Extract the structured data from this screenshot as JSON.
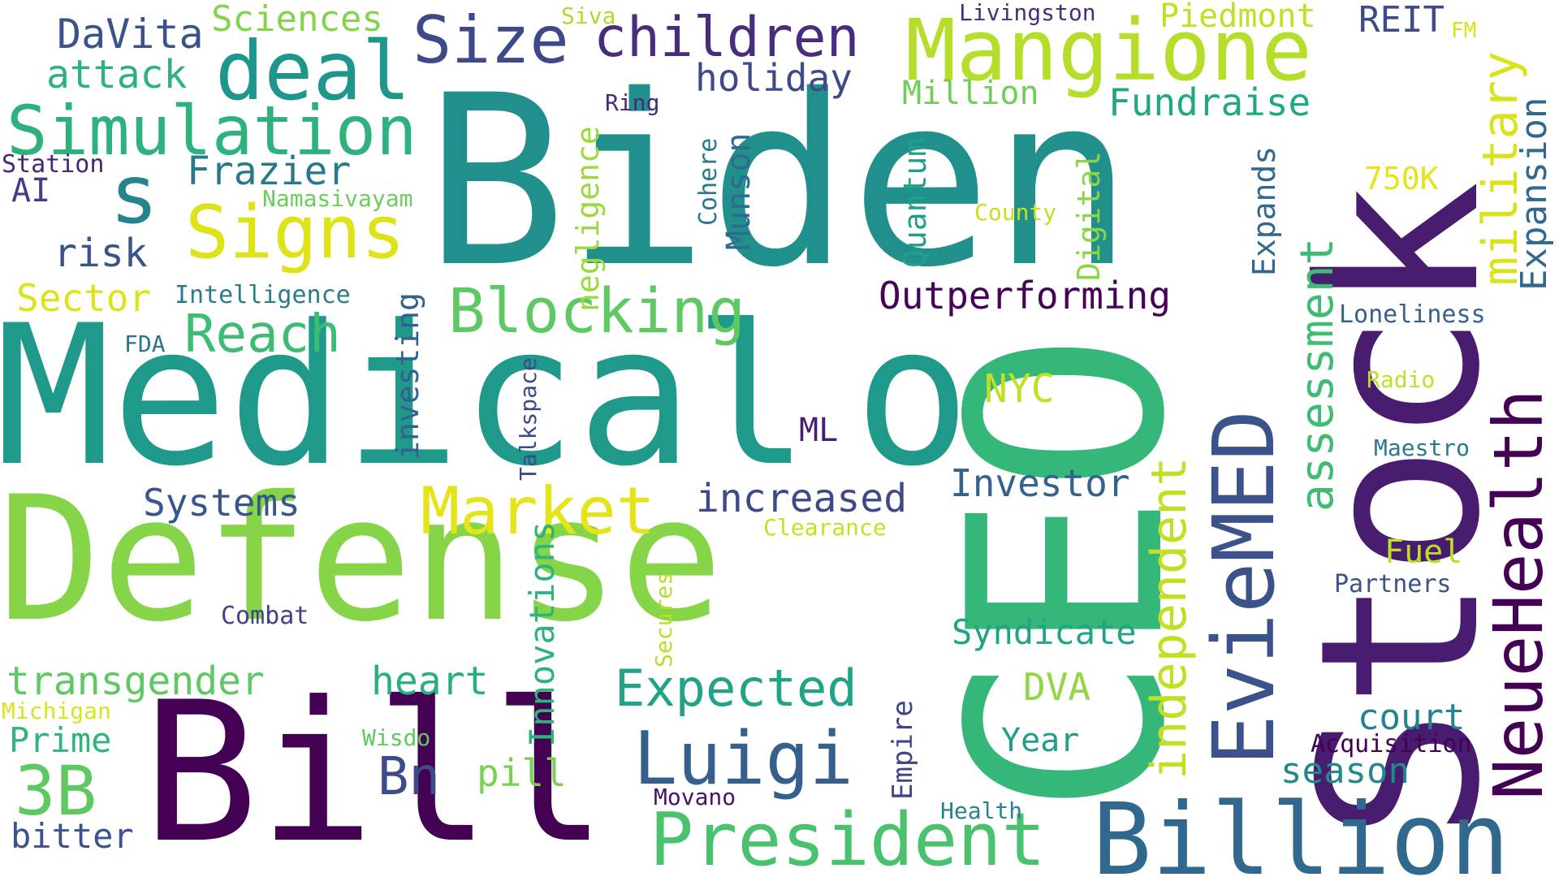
{
  "word_cloud": {
    "palette": "viridis",
    "words": [
      {
        "text": "Biden",
        "color": "#21908d"
      },
      {
        "text": "Medical",
        "color": "#1f9a8a"
      },
      {
        "text": "o",
        "color": "#1f9a8a"
      },
      {
        "text": "Defense",
        "color": "#86d549"
      },
      {
        "text": "Bill",
        "color": "#440154"
      },
      {
        "text": "Stock",
        "color": "#481c6e"
      },
      {
        "text": "CEO",
        "color": "#35b779"
      },
      {
        "text": "Billion",
        "color": "#31688e"
      },
      {
        "text": "Mangione",
        "color": "#b5de2b"
      },
      {
        "text": "deal",
        "color": "#1f968b"
      },
      {
        "text": "Simulation",
        "color": "#2db27d"
      },
      {
        "text": "Size",
        "color": "#3e4989"
      },
      {
        "text": "children",
        "color": "#472d7b"
      },
      {
        "text": "s",
        "color": "#25858e"
      },
      {
        "text": "Signs",
        "color": "#dde318"
      },
      {
        "text": "Blocking",
        "color": "#5ec962"
      },
      {
        "text": "Reach",
        "color": "#3dbc74"
      },
      {
        "text": "Market",
        "color": "#e5e419"
      },
      {
        "text": "President",
        "color": "#4ac16d"
      },
      {
        "text": "Luigi",
        "color": "#355f8d"
      },
      {
        "text": "Expected",
        "color": "#20a386"
      },
      {
        "text": "EvieMED",
        "color": "#3b528b"
      },
      {
        "text": "NeueHealth",
        "color": "#440154"
      },
      {
        "text": "military",
        "color": "#dae319"
      },
      {
        "text": "assessment",
        "color": "#3fbc73"
      },
      {
        "text": "independent",
        "color": "#c2df23"
      },
      {
        "text": "Expansion",
        "color": "#31688e"
      },
      {
        "text": "3B",
        "color": "#5ec962"
      },
      {
        "text": "Bn",
        "color": "#3e4a89"
      },
      {
        "text": "DaVita",
        "color": "#3b528b"
      },
      {
        "text": "Sciences",
        "color": "#84d44b"
      },
      {
        "text": "attack",
        "color": "#2db27d"
      },
      {
        "text": "Frazier",
        "color": "#2a788e"
      },
      {
        "text": "AI",
        "color": "#433e85"
      },
      {
        "text": "Station",
        "color": "#482576"
      },
      {
        "text": "Namasivayam",
        "color": "#6ccd5a"
      },
      {
        "text": "risk",
        "color": "#3b528b"
      },
      {
        "text": "Sector",
        "color": "#dde318"
      },
      {
        "text": "Intelligence",
        "color": "#287c8e"
      },
      {
        "text": "FDA",
        "color": "#2c728e"
      },
      {
        "text": "Systems",
        "color": "#39568c"
      },
      {
        "text": "transgender",
        "color": "#5ec962"
      },
      {
        "text": "heart",
        "color": "#29af7f"
      },
      {
        "text": "Michigan",
        "color": "#dae319"
      },
      {
        "text": "Prime",
        "color": "#2fb47c"
      },
      {
        "text": "bitter",
        "color": "#3b528b"
      },
      {
        "text": "Combat",
        "color": "#424086"
      },
      {
        "text": "Wisdo",
        "color": "#5ec962"
      },
      {
        "text": "pill",
        "color": "#7ad151"
      },
      {
        "text": "Movano",
        "color": "#471365"
      },
      {
        "text": "Innovations",
        "color": "#2eb37c"
      },
      {
        "text": "Secures",
        "color": "#b8de29"
      },
      {
        "text": "Talkspace",
        "color": "#3e4989"
      },
      {
        "text": "investing",
        "color": "#33638d"
      },
      {
        "text": "negligence",
        "color": "#9bd93c"
      },
      {
        "text": "Ring",
        "color": "#482878"
      },
      {
        "text": "holiday",
        "color": "#3e4a89"
      },
      {
        "text": "Siva",
        "color": "#addc30"
      },
      {
        "text": "Cohere",
        "color": "#2a788e"
      },
      {
        "text": "Munson",
        "color": "#2f6b8e"
      },
      {
        "text": "Million",
        "color": "#6ece58"
      },
      {
        "text": "Quantum",
        "color": "#1fa187"
      },
      {
        "text": "County",
        "color": "#c8e020"
      },
      {
        "text": "Digital",
        "color": "#8bd646"
      },
      {
        "text": "Outperforming",
        "color": "#450457"
      },
      {
        "text": "NYC",
        "color": "#c2df23"
      },
      {
        "text": "ML",
        "color": "#481f70"
      },
      {
        "text": "increased",
        "color": "#3e4989"
      },
      {
        "text": "Investor",
        "color": "#33628d"
      },
      {
        "text": "Clearance",
        "color": "#c8e020"
      },
      {
        "text": "Syndicate",
        "color": "#20a486"
      },
      {
        "text": "DVA",
        "color": "#8fd744"
      },
      {
        "text": "Year",
        "color": "#1f9f88"
      },
      {
        "text": "Empire",
        "color": "#414487"
      },
      {
        "text": "Health",
        "color": "#26828e"
      },
      {
        "text": "Livingston",
        "color": "#472f7d"
      },
      {
        "text": "Piedmont",
        "color": "#c2df23"
      },
      {
        "text": "REIT",
        "color": "#3e4a89"
      },
      {
        "text": "FM",
        "color": "#d8e219"
      },
      {
        "text": "Fundraise",
        "color": "#22a785"
      },
      {
        "text": "Expands",
        "color": "#31688e"
      },
      {
        "text": "750K",
        "color": "#e5e419"
      },
      {
        "text": "Loneliness",
        "color": "#34618d"
      },
      {
        "text": "Radio",
        "color": "#c0df25"
      },
      {
        "text": "Maestro",
        "color": "#2a788e"
      },
      {
        "text": "Fuel",
        "color": "#bddf26"
      },
      {
        "text": "Partners",
        "color": "#3b528b"
      },
      {
        "text": "court",
        "color": "#26828e"
      },
      {
        "text": "Acquisition",
        "color": "#440154"
      },
      {
        "text": "season",
        "color": "#23888e"
      }
    ]
  }
}
